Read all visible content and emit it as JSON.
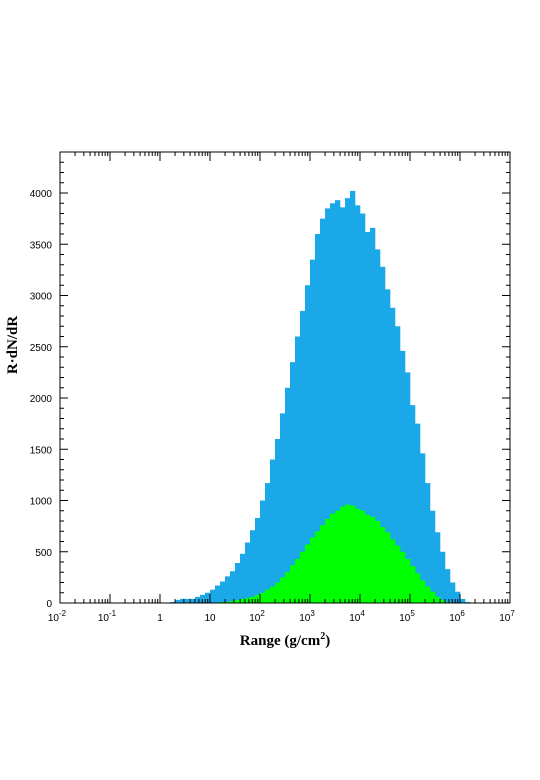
{
  "chart_data": {
    "type": "histogram",
    "title": "",
    "xlabel": "Range (g/cm",
    "xlabel_superscript": "2",
    "xlabel_suffix": ")",
    "ylabel": "R·dN/dR",
    "x_scale": "log",
    "xlim": [
      0.01,
      10000000
    ],
    "ylim": [
      0,
      4400
    ],
    "x_tick_labels": [
      {
        "base": "10",
        "exp": "-2",
        "value": 0.01
      },
      {
        "base": "10",
        "exp": "-1",
        "value": 0.1
      },
      {
        "base": "1",
        "exp": "",
        "value": 1
      },
      {
        "base": "10",
        "exp": "",
        "value": 10
      },
      {
        "base": "10",
        "exp": "2",
        "value": 100
      },
      {
        "base": "10",
        "exp": "3",
        "value": 1000
      },
      {
        "base": "10",
        "exp": "4",
        "value": 10000
      },
      {
        "base": "10",
        "exp": "5",
        "value": 100000
      },
      {
        "base": "10",
        "exp": "6",
        "value": 1000000
      },
      {
        "base": "10",
        "exp": "7",
        "value": 10000000
      }
    ],
    "y_ticks": [
      0,
      500,
      1000,
      1500,
      2000,
      2500,
      3000,
      3500,
      4000
    ],
    "y_tick_labels": [
      "0",
      "500",
      "1000",
      "1500",
      "2000",
      "2500",
      "3000",
      "3500",
      "4000"
    ],
    "bins_per_decade": 10,
    "series": [
      {
        "color": "#1aa8e8",
        "bin_start_log10": 0.0,
        "values": [
          0,
          0,
          10,
          30,
          40,
          40,
          40,
          60,
          80,
          100,
          130,
          170,
          210,
          260,
          310,
          390,
          480,
          590,
          710,
          830,
          1000,
          1170,
          1400,
          1600,
          1850,
          2100,
          2350,
          2600,
          2850,
          3100,
          3350,
          3600,
          3750,
          3850,
          3900,
          3930,
          3860,
          3950,
          4020,
          3880,
          3800,
          3620,
          3660,
          3450,
          3280,
          3060,
          2880,
          2700,
          2460,
          2250,
          1930,
          1750,
          1460,
          1170,
          900,
          690,
          500,
          330,
          200,
          110,
          40,
          10
        ]
      },
      {
        "color": "#00ff00",
        "bin_start_log10": 1.0,
        "values": [
          0,
          0,
          10,
          10,
          20,
          30,
          40,
          50,
          60,
          80,
          100,
          130,
          160,
          200,
          250,
          300,
          370,
          430,
          500,
          570,
          640,
          700,
          760,
          820,
          870,
          900,
          940,
          960,
          950,
          920,
          900,
          860,
          840,
          800,
          740,
          690,
          620,
          560,
          500,
          430,
          360,
          290,
          220,
          160,
          110,
          60,
          30,
          10,
          0
        ]
      }
    ]
  }
}
